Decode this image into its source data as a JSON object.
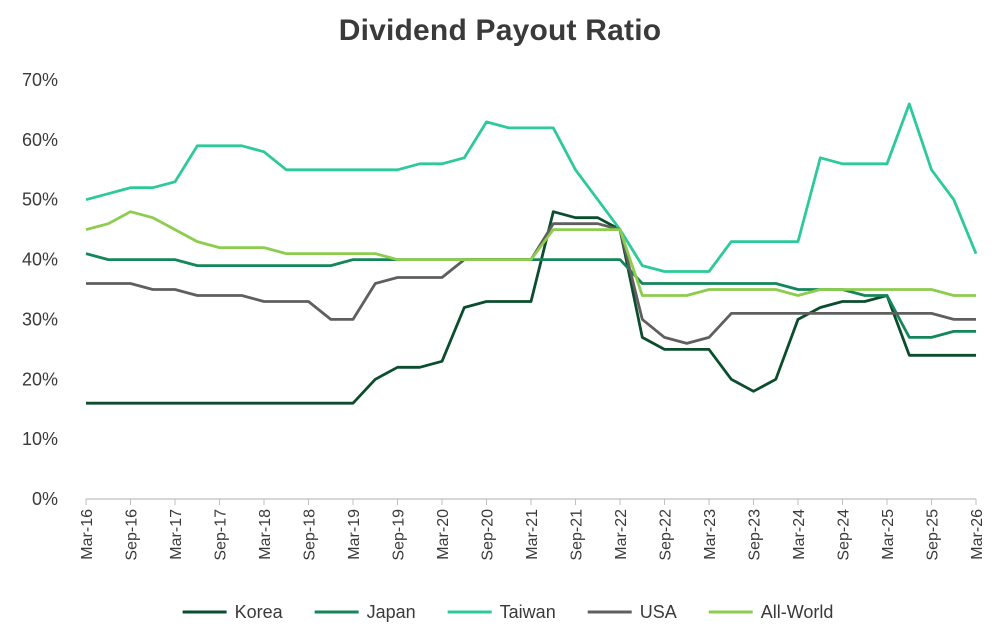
{
  "chart_data": {
    "type": "line",
    "title": "Dividend Payout Ratio",
    "xlabel": "",
    "ylabel": "",
    "ylim": [
      0,
      70
    ],
    "y_ticks": [
      "0%",
      "10%",
      "20%",
      "30%",
      "40%",
      "50%",
      "60%",
      "70%"
    ],
    "x_tick_labels": [
      "Mar-16",
      "Sep-16",
      "Mar-17",
      "Sep-17",
      "Mar-18",
      "Sep-18",
      "Mar-19",
      "Sep-19",
      "Mar-20",
      "Sep-20",
      "Mar-21",
      "Sep-21",
      "Mar-22",
      "Sep-22",
      "Mar-23",
      "Sep-23",
      "Mar-24",
      "Sep-24",
      "Mar-25",
      "Sep-25",
      "Mar-26"
    ],
    "x": [
      "Mar-16",
      "Jun-16",
      "Sep-16",
      "Dec-16",
      "Mar-17",
      "Jun-17",
      "Sep-17",
      "Dec-17",
      "Mar-18",
      "Jun-18",
      "Sep-18",
      "Dec-18",
      "Mar-19",
      "Jun-19",
      "Sep-19",
      "Dec-19",
      "Mar-20",
      "Jun-20",
      "Sep-20",
      "Dec-20",
      "Mar-21",
      "Jun-21",
      "Sep-21",
      "Dec-21",
      "Mar-22",
      "Jun-22",
      "Sep-22",
      "Dec-22",
      "Mar-23",
      "Jun-23",
      "Sep-23",
      "Dec-23",
      "Mar-24",
      "Jun-24",
      "Sep-24",
      "Dec-24",
      "Mar-25",
      "Jun-25",
      "Sep-25",
      "Dec-25",
      "Mar-26"
    ],
    "grid": false,
    "legend_position": "bottom",
    "series": [
      {
        "name": "Korea",
        "color": "#0b4d2c",
        "values": [
          16,
          16,
          16,
          16,
          16,
          16,
          16,
          16,
          16,
          16,
          16,
          16,
          16,
          20,
          22,
          22,
          23,
          32,
          33,
          33,
          33,
          48,
          47,
          47,
          45,
          27,
          25,
          25,
          25,
          20,
          18,
          20,
          30,
          32,
          33,
          33,
          34,
          24,
          24,
          24,
          24
        ]
      },
      {
        "name": "Japan",
        "color": "#14865a",
        "values": [
          41,
          40,
          40,
          40,
          40,
          39,
          39,
          39,
          39,
          39,
          39,
          39,
          40,
          40,
          40,
          40,
          40,
          40,
          40,
          40,
          40,
          40,
          40,
          40,
          40,
          36,
          36,
          36,
          36,
          36,
          36,
          36,
          35,
          35,
          35,
          34,
          34,
          27,
          27,
          28,
          28
        ]
      },
      {
        "name": "Taiwan",
        "color": "#2ec99a",
        "values": [
          50,
          51,
          52,
          52,
          53,
          59,
          59,
          59,
          58,
          55,
          55,
          55,
          55,
          55,
          55,
          56,
          56,
          57,
          63,
          62,
          62,
          62,
          55,
          50,
          45,
          39,
          38,
          38,
          38,
          43,
          43,
          43,
          43,
          57,
          56,
          56,
          56,
          66,
          55,
          50,
          41
        ]
      },
      {
        "name": "USA",
        "color": "#5f5f5f",
        "values": [
          36,
          36,
          36,
          35,
          35,
          34,
          34,
          34,
          33,
          33,
          33,
          30,
          30,
          36,
          37,
          37,
          37,
          40,
          40,
          40,
          40,
          46,
          46,
          46,
          45,
          30,
          27,
          26,
          27,
          31,
          31,
          31,
          31,
          31,
          31,
          31,
          31,
          31,
          31,
          30,
          30
        ]
      },
      {
        "name": "All-World",
        "color": "#8ccd4e",
        "values": [
          45,
          46,
          48,
          47,
          45,
          43,
          42,
          42,
          42,
          41,
          41,
          41,
          41,
          41,
          40,
          40,
          40,
          40,
          40,
          40,
          40,
          45,
          45,
          45,
          45,
          34,
          34,
          34,
          35,
          35,
          35,
          35,
          34,
          35,
          35,
          35,
          35,
          35,
          35,
          34,
          34
        ]
      }
    ]
  }
}
